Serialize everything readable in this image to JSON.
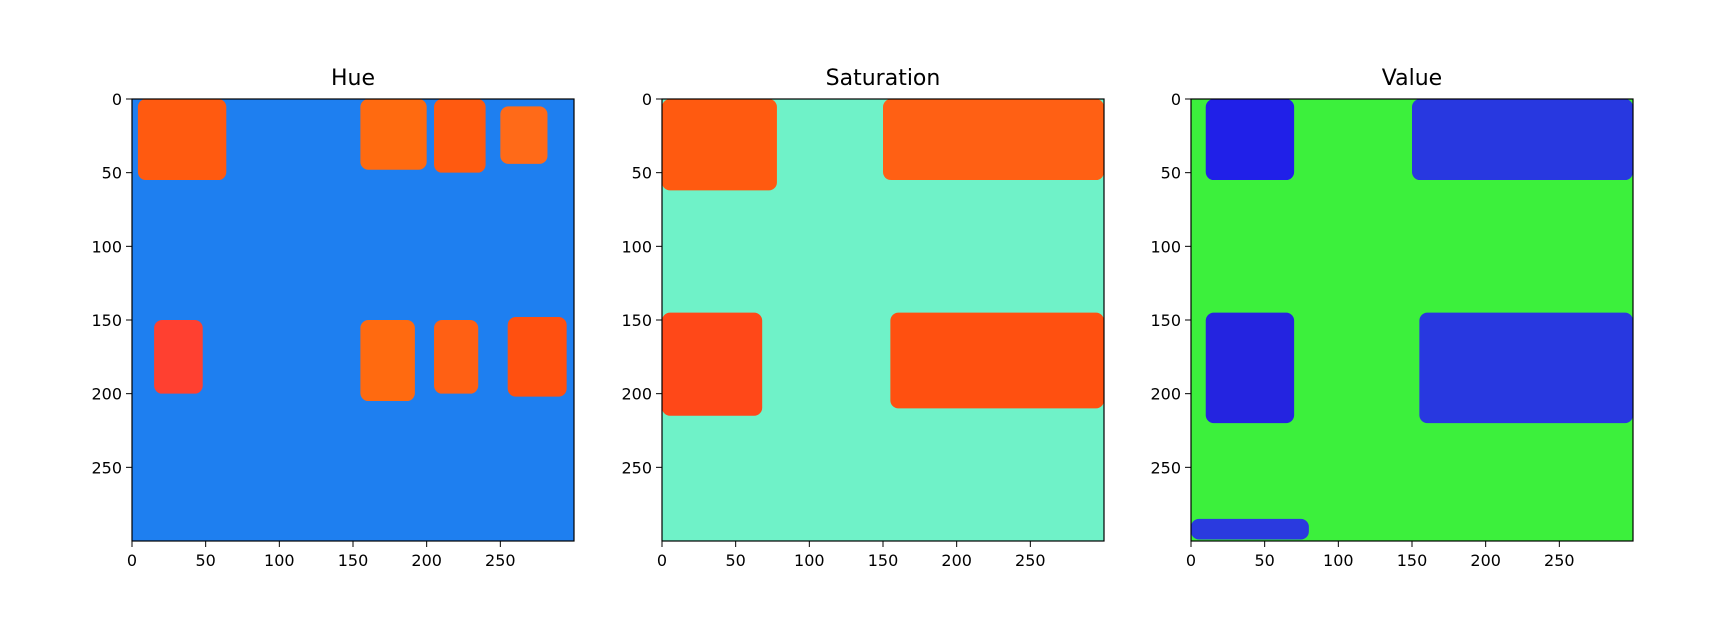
{
  "chart_data": [
    {
      "type": "heatmap",
      "title": "Hue",
      "colormap": "hsv",
      "image_size": [
        300,
        300
      ],
      "xlim": [
        0,
        299
      ],
      "ylim": [
        299,
        0
      ],
      "xticks": [
        0,
        50,
        100,
        150,
        200,
        250
      ],
      "yticks": [
        0,
        50,
        100,
        150,
        200,
        250
      ],
      "background_color": "#1e7ff0",
      "regions": [
        {
          "x": [
            4,
            64
          ],
          "y": [
            0,
            55
          ],
          "color": "#ff5a10"
        },
        {
          "x": [
            155,
            200
          ],
          "y": [
            0,
            48
          ],
          "color": "#ff6a10"
        },
        {
          "x": [
            205,
            240
          ],
          "y": [
            0,
            50
          ],
          "color": "#ff5a10"
        },
        {
          "x": [
            250,
            282
          ],
          "y": [
            5,
            44
          ],
          "color": "#ff6a18"
        },
        {
          "x": [
            15,
            48
          ],
          "y": [
            150,
            200
          ],
          "color": "#ff4030"
        },
        {
          "x": [
            155,
            192
          ],
          "y": [
            150,
            205
          ],
          "color": "#ff6a10"
        },
        {
          "x": [
            205,
            235
          ],
          "y": [
            150,
            200
          ],
          "color": "#ff6014"
        },
        {
          "x": [
            255,
            295
          ],
          "y": [
            148,
            202
          ],
          "color": "#ff5010"
        }
      ]
    },
    {
      "type": "heatmap",
      "title": "Saturation",
      "colormap": "hsv",
      "image_size": [
        300,
        300
      ],
      "xlim": [
        0,
        299
      ],
      "ylim": [
        299,
        0
      ],
      "xticks": [
        0,
        50,
        100,
        150,
        200,
        250
      ],
      "yticks": [
        0,
        50,
        100,
        150,
        200,
        250
      ],
      "background_color": "#6ff2c8",
      "regions": [
        {
          "x": [
            0,
            78
          ],
          "y": [
            0,
            62
          ],
          "color": "#ff5a10"
        },
        {
          "x": [
            150,
            300
          ],
          "y": [
            0,
            55
          ],
          "color": "#ff6014"
        },
        {
          "x": [
            0,
            68
          ],
          "y": [
            145,
            215
          ],
          "color": "#ff4818"
        },
        {
          "x": [
            155,
            300
          ],
          "y": [
            145,
            210
          ],
          "color": "#ff5010"
        }
      ]
    },
    {
      "type": "heatmap",
      "title": "Value",
      "colormap": "hsv",
      "image_size": [
        300,
        300
      ],
      "xlim": [
        0,
        299
      ],
      "ylim": [
        299,
        0
      ],
      "xticks": [
        0,
        50,
        100,
        150,
        200,
        250
      ],
      "yticks": [
        0,
        50,
        100,
        150,
        200,
        250
      ],
      "background_color": "#3cf03c",
      "regions": [
        {
          "x": [
            10,
            70
          ],
          "y": [
            0,
            55
          ],
          "color": "#2020e8"
        },
        {
          "x": [
            150,
            300
          ],
          "y": [
            0,
            55
          ],
          "color": "#2838e0"
        },
        {
          "x": [
            10,
            70
          ],
          "y": [
            145,
            220
          ],
          "color": "#2424e0"
        },
        {
          "x": [
            155,
            300
          ],
          "y": [
            145,
            220
          ],
          "color": "#2838e0"
        },
        {
          "x": [
            0,
            80
          ],
          "y": [
            285,
            299
          ],
          "color": "#2a3adf"
        }
      ]
    }
  ]
}
